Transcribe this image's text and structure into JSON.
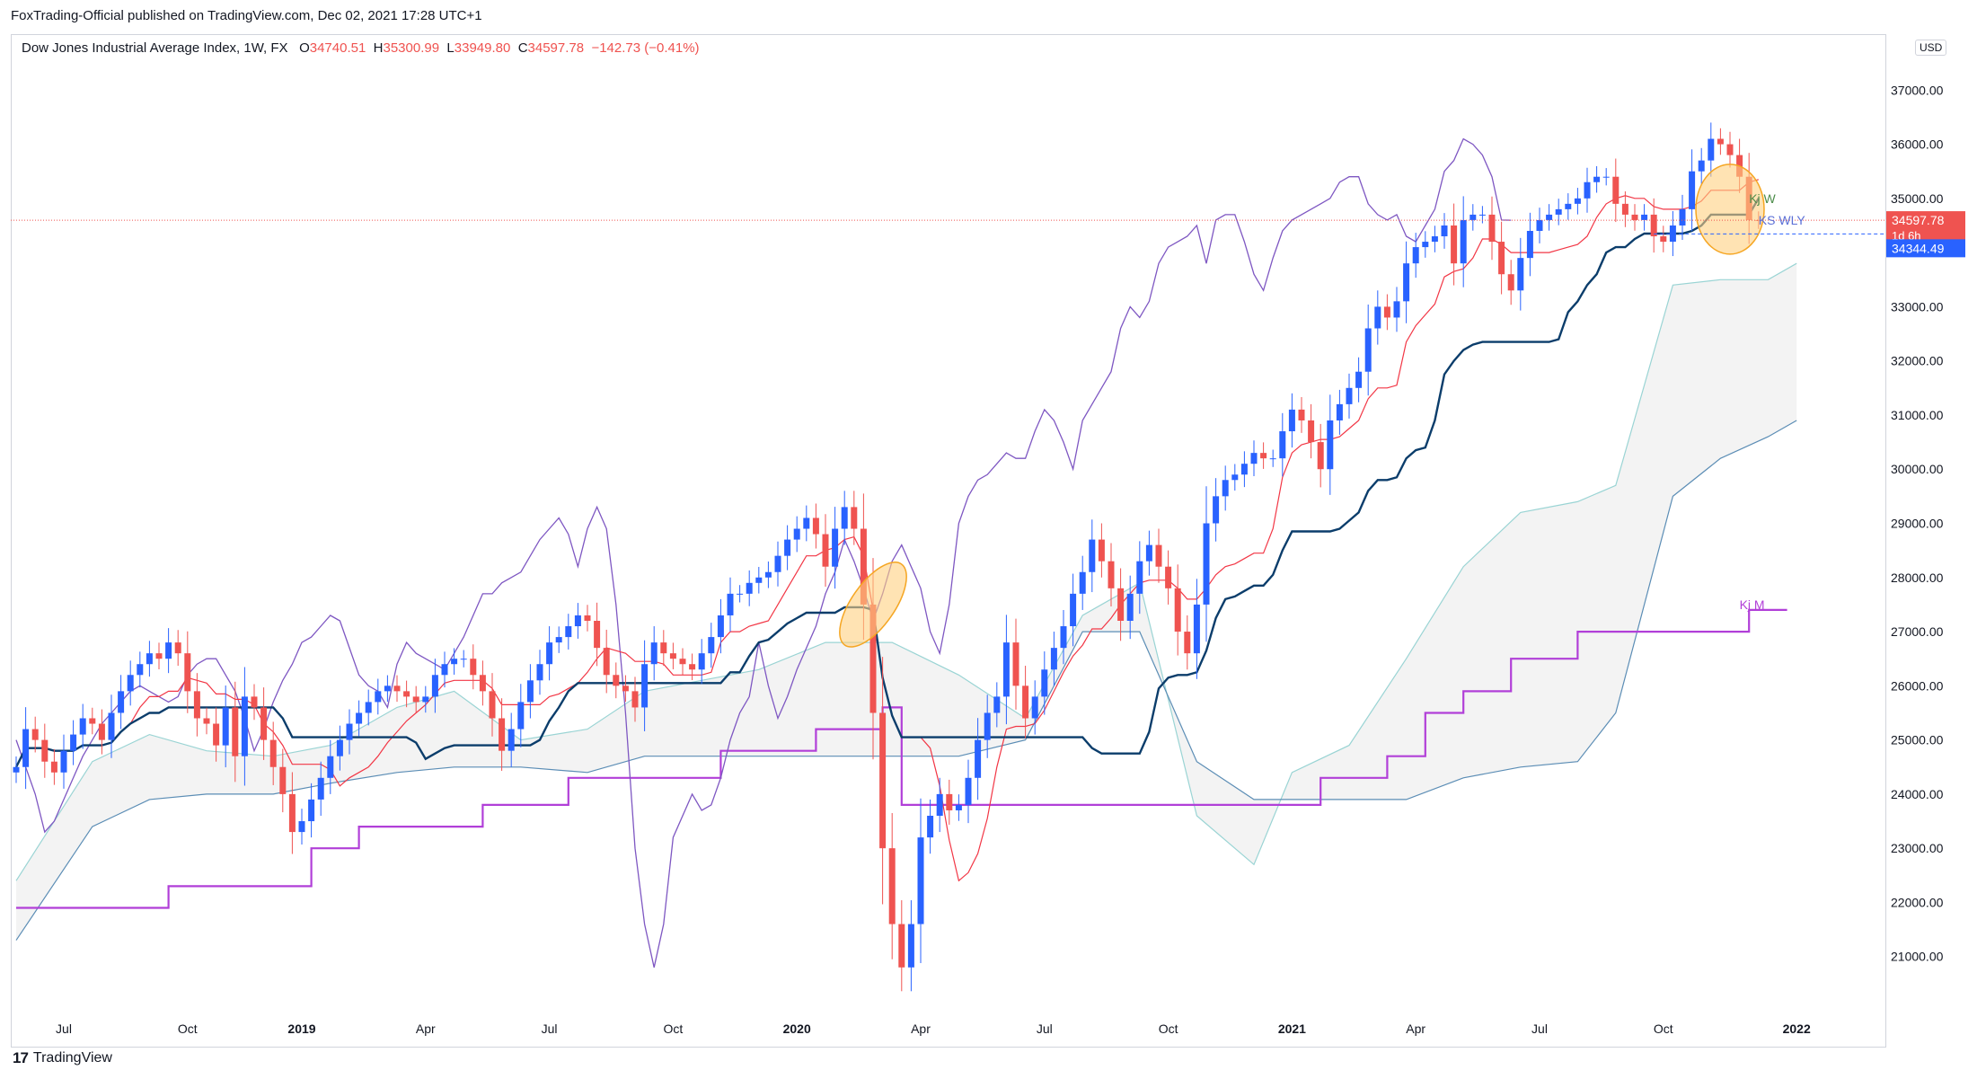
{
  "publisher_line": "FoxTrading-Official published on TradingView.com, Dec 02, 2021 17:28 UTC+1",
  "legend": {
    "symbol": "Dow Jones Industrial Average Index, 1W, FX",
    "o_label": "O",
    "o_value": "34740.51",
    "h_label": "H",
    "h_value": "35300.99",
    "l_label": "L",
    "l_value": "33949.80",
    "c_label": "C",
    "c_value": "34597.78",
    "change": "−142.73 (−0.41%)"
  },
  "currency": "USD",
  "watermark": "TradingView",
  "price_tags": {
    "last": "34597.78",
    "countdown": "1d 6h",
    "ks_value": "34344.49"
  },
  "colors": {
    "up": "#2962ff",
    "down": "#ef5350",
    "tenkan": "#f23645",
    "kijun_w": "#0b3d6b",
    "kijun_m": "#b13fd8",
    "chikou": "#7e57c2",
    "cloud": "#eeeeee",
    "span_a": "#9ad4d4",
    "span_b": "#5b8db5",
    "highlight": "#ffd180",
    "highlight_border": "#f5a623"
  },
  "chart_data": {
    "type": "candlestick",
    "title": "Dow Jones Industrial Average Index, 1W, FX",
    "ylim": [
      20000,
      38000
    ],
    "y_ticks": [
      21000,
      22000,
      23000,
      24000,
      25000,
      26000,
      27000,
      28000,
      29000,
      30000,
      31000,
      32000,
      33000,
      34000,
      35000,
      36000,
      37000
    ],
    "y_tick_labels": [
      "21000.00",
      "22000.00",
      "23000.00",
      "24000.00",
      "25000.00",
      "26000.00",
      "27000.00",
      "28000.00",
      "29000.00",
      "30000.00",
      "31000.00",
      "32000.00",
      "33000.00",
      "34000.00",
      "35000.00",
      "36000.00",
      "37000.00"
    ],
    "x_labels": [
      {
        "text": "Jul",
        "week": 5,
        "bold": false
      },
      {
        "text": "Oct",
        "week": 18,
        "bold": false
      },
      {
        "text": "2019",
        "week": 30,
        "bold": true
      },
      {
        "text": "Apr",
        "week": 43,
        "bold": false
      },
      {
        "text": "Jul",
        "week": 56,
        "bold": false
      },
      {
        "text": "Oct",
        "week": 69,
        "bold": false
      },
      {
        "text": "2020",
        "week": 82,
        "bold": true
      },
      {
        "text": "Apr",
        "week": 95,
        "bold": false
      },
      {
        "text": "Jul",
        "week": 108,
        "bold": false
      },
      {
        "text": "Oct",
        "week": 121,
        "bold": false
      },
      {
        "text": "2021",
        "week": 134,
        "bold": true
      },
      {
        "text": "Apr",
        "week": 147,
        "bold": false
      },
      {
        "text": "Jul",
        "week": 160,
        "bold": false
      },
      {
        "text": "Oct",
        "week": 173,
        "bold": false
      },
      {
        "text": "2022",
        "week": 187,
        "bold": true
      }
    ],
    "closes": [
      24500,
      25200,
      25000,
      24600,
      24400,
      24800,
      25100,
      25400,
      25300,
      25000,
      25500,
      25900,
      26200,
      26400,
      26600,
      26500,
      26800,
      26600,
      25900,
      25400,
      25300,
      24900,
      25600,
      24700,
      25800,
      25600,
      25000,
      24500,
      24000,
      23300,
      23500,
      23900,
      24300,
      24700,
      25000,
      25300,
      25500,
      25700,
      25900,
      26000,
      25900,
      25800,
      25700,
      25800,
      26200,
      26400,
      26500,
      26500,
      26200,
      25900,
      25400,
      24800,
      25200,
      25700,
      26100,
      26400,
      26800,
      26900,
      27100,
      27300,
      27200,
      26700,
      26200,
      26000,
      25900,
      25600,
      26400,
      26800,
      26600,
      26500,
      26400,
      26300,
      26600,
      26900,
      27300,
      27700,
      27700,
      27900,
      28000,
      28100,
      28400,
      28700,
      28900,
      29100,
      28800,
      28200,
      28900,
      29300,
      28900,
      27500,
      25500,
      23000,
      21600,
      20800,
      21600,
      23200,
      23600,
      24000,
      23700,
      23800,
      24300,
      25000,
      25500,
      25800,
      26800,
      26000,
      25400,
      25800,
      26300,
      26700,
      27100,
      27700,
      28100,
      28700,
      28300,
      27800,
      27200,
      27700,
      28300,
      28600,
      28200,
      27800,
      27000,
      26600,
      27500,
      29000,
      29500,
      29800,
      29900,
      30100,
      30300,
      30200,
      30200,
      30700,
      31100,
      30900,
      30500,
      30000,
      30900,
      31200,
      31500,
      31800,
      32600,
      33000,
      32800,
      33100,
      33800,
      34100,
      34200,
      34300,
      34500,
      33800,
      34600,
      34700,
      34700,
      34200,
      33600,
      33300,
      33900,
      34400,
      34600,
      34700,
      34800,
      34900,
      35000,
      35300,
      35400,
      35400,
      34900,
      34700,
      34600,
      34700,
      34300,
      34200,
      34500,
      34800,
      35500,
      35700,
      36100,
      36000,
      35800,
      35400,
      34600,
      34597.78
    ],
    "series": [
      {
        "name": "Kj W"
      },
      {
        "name": "KS WLY"
      },
      {
        "name": "Kj M"
      }
    ],
    "kijun_m_levels": [
      [
        0,
        21900
      ],
      [
        16,
        22300
      ],
      [
        31,
        23000
      ],
      [
        36,
        23400
      ],
      [
        49,
        23800
      ],
      [
        58,
        24300
      ],
      [
        74,
        24800
      ],
      [
        84,
        25200
      ],
      [
        91,
        25600
      ],
      [
        93,
        23800
      ],
      [
        137,
        24300
      ],
      [
        144,
        24700
      ],
      [
        148,
        25500
      ],
      [
        152,
        25900
      ],
      [
        157,
        26500
      ],
      [
        164,
        27000
      ],
      [
        182,
        27400
      ],
      [
        186,
        27400
      ]
    ],
    "cloud_span_a": [
      [
        0,
        22400
      ],
      [
        8,
        24600
      ],
      [
        14,
        25100
      ],
      [
        20,
        24800
      ],
      [
        27,
        24700
      ],
      [
        33,
        24900
      ],
      [
        40,
        25600
      ],
      [
        46,
        25900
      ],
      [
        53,
        25000
      ],
      [
        60,
        25200
      ],
      [
        66,
        25900
      ],
      [
        72,
        26100
      ],
      [
        78,
        26300
      ],
      [
        85,
        26800
      ],
      [
        92,
        26800
      ],
      [
        99,
        26200
      ],
      [
        106,
        25400
      ],
      [
        112,
        27300
      ],
      [
        118,
        27900
      ],
      [
        124,
        23600
      ],
      [
        130,
        22700
      ],
      [
        134,
        24400
      ],
      [
        140,
        24900
      ],
      [
        146,
        26500
      ],
      [
        152,
        28200
      ],
      [
        158,
        29200
      ],
      [
        164,
        29400
      ],
      [
        168,
        29700
      ],
      [
        174,
        33400
      ],
      [
        179,
        33500
      ],
      [
        184,
        33500
      ],
      [
        187,
        33800
      ]
    ],
    "cloud_span_b": [
      [
        0,
        21300
      ],
      [
        8,
        23400
      ],
      [
        14,
        23900
      ],
      [
        20,
        24000
      ],
      [
        27,
        24000
      ],
      [
        33,
        24200
      ],
      [
        40,
        24400
      ],
      [
        46,
        24500
      ],
      [
        53,
        24500
      ],
      [
        60,
        24400
      ],
      [
        66,
        24700
      ],
      [
        72,
        24700
      ],
      [
        78,
        24700
      ],
      [
        85,
        24700
      ],
      [
        92,
        24700
      ],
      [
        99,
        24700
      ],
      [
        106,
        25000
      ],
      [
        112,
        27000
      ],
      [
        118,
        27000
      ],
      [
        124,
        24600
      ],
      [
        130,
        23900
      ],
      [
        134,
        23900
      ],
      [
        140,
        23900
      ],
      [
        146,
        23900
      ],
      [
        152,
        24300
      ],
      [
        158,
        24500
      ],
      [
        164,
        24600
      ],
      [
        168,
        25500
      ],
      [
        174,
        29500
      ],
      [
        179,
        30200
      ],
      [
        184,
        30600
      ],
      [
        187,
        30900
      ]
    ],
    "annotations": [
      {
        "text": "Kj W",
        "week": 182,
        "price": 35000
      },
      {
        "text": "KS WLY",
        "week": 183,
        "price": 34600
      },
      {
        "text": "Kj M",
        "week": 181,
        "price": 27500
      }
    ]
  }
}
